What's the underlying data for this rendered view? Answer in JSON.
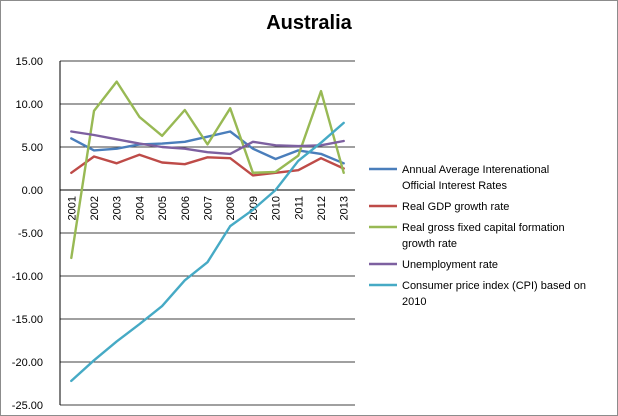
{
  "chart_data": {
    "type": "line",
    "title": "Australia",
    "xlabel": "",
    "ylabel": "",
    "ylim": [
      -25,
      15
    ],
    "yticks": [
      "15.00",
      "10.00",
      "5.00",
      "0.00",
      "-5.00",
      "-10.00",
      "-15.00",
      "-20.00",
      "-25.00"
    ],
    "categories": [
      "2001",
      "2002",
      "2003",
      "2004",
      "2005",
      "2006",
      "2007",
      "2008",
      "2009",
      "2010",
      "2011",
      "2012",
      "2013"
    ],
    "grid": true,
    "legend_position": "right",
    "series": [
      {
        "name_lines": [
          "Annual Average Interenational",
          "Official Interest Rates"
        ],
        "color": "#4a7ebb",
        "values": [
          6.0,
          4.6,
          4.8,
          5.3,
          5.4,
          5.6,
          6.2,
          6.8,
          4.8,
          3.6,
          4.6,
          4.2,
          3.1
        ]
      },
      {
        "name_lines": [
          "Real GDP growth rate"
        ],
        "color": "#be4b48",
        "values": [
          2.0,
          3.9,
          3.1,
          4.1,
          3.2,
          3.0,
          3.8,
          3.7,
          1.7,
          2.0,
          2.3,
          3.7,
          2.5
        ]
      },
      {
        "name_lines": [
          "Real gross fixed capital formation",
          "growth rate"
        ],
        "color": "#98b954",
        "values": [
          -7.9,
          9.2,
          12.6,
          8.5,
          6.3,
          9.3,
          5.3,
          9.5,
          2.0,
          2.1,
          4.0,
          11.5,
          2.0
        ]
      },
      {
        "name_lines": [
          "Unemployment  rate"
        ],
        "color": "#7d60a0",
        "values": [
          6.8,
          6.4,
          5.9,
          5.4,
          5.0,
          4.8,
          4.4,
          4.2,
          5.6,
          5.2,
          5.1,
          5.2,
          5.7
        ]
      },
      {
        "name_lines": [
          "Consumer price index (CPI) based on",
          "2010"
        ],
        "color": "#46aac5",
        "values": [
          -22.2,
          -19.8,
          -17.6,
          -15.6,
          -13.5,
          -10.5,
          -8.4,
          -4.2,
          -2.3,
          0.0,
          3.4,
          5.5,
          7.8
        ]
      }
    ]
  }
}
